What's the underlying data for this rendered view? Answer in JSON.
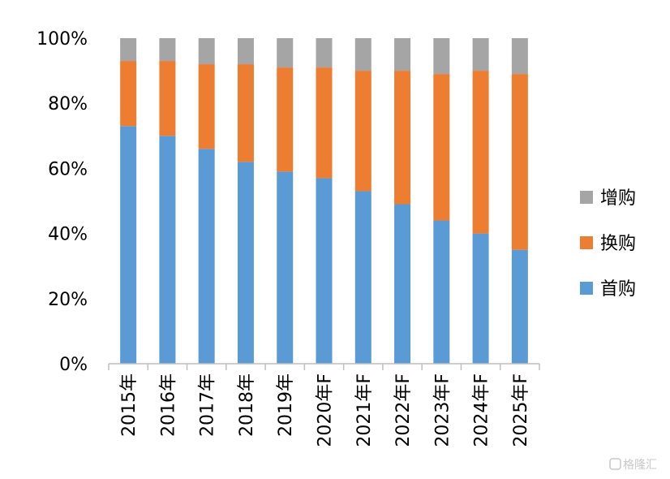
{
  "chart_data": {
    "type": "bar",
    "stacked": "percent",
    "categories": [
      "2015年",
      "2016年",
      "2017年",
      "2018年",
      "2019年",
      "2020年F",
      "2021年F",
      "2022年F",
      "2023年F",
      "2024年F",
      "2025年F"
    ],
    "series": [
      {
        "name": "首购",
        "color": "#5b9bd5",
        "values": [
          73,
          70,
          66,
          62,
          59,
          57,
          53,
          49,
          44,
          40,
          35
        ]
      },
      {
        "name": "换购",
        "color": "#ed7d31",
        "values": [
          20,
          23,
          26,
          30,
          32,
          34,
          37,
          41,
          45,
          50,
          54
        ]
      },
      {
        "name": "增购",
        "color": "#a5a5a5",
        "values": [
          7,
          7,
          8,
          8,
          9,
          9,
          10,
          10,
          11,
          10,
          11
        ]
      }
    ],
    "yticks": [
      "0%",
      "20%",
      "40%",
      "60%",
      "80%",
      "100%"
    ],
    "ylim": [
      0,
      100
    ],
    "legend_order": [
      "增购",
      "换购",
      "首购"
    ],
    "legend_position": "right",
    "grid": false
  },
  "watermark": "格隆汇"
}
